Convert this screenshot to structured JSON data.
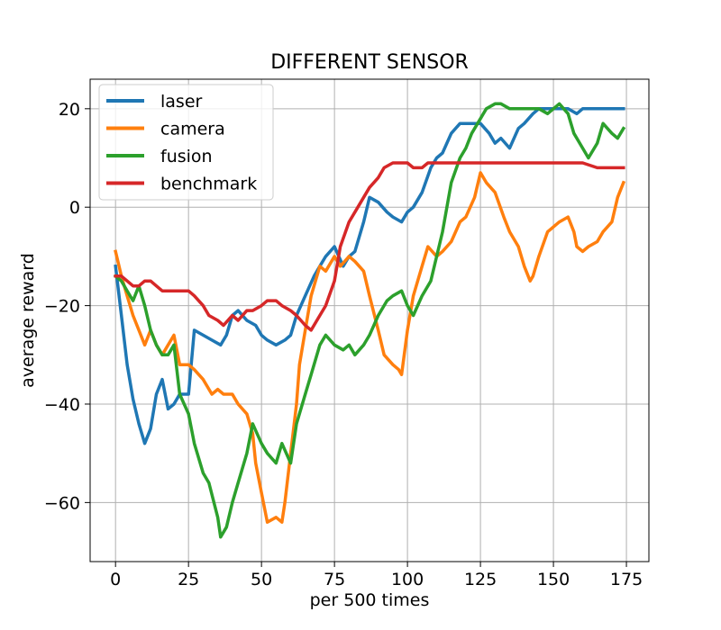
{
  "chart_data": {
    "type": "line",
    "title": "DIFFERENT SENSOR",
    "xlabel": "per 500 times",
    "ylabel": "average reward",
    "xlim": [
      -8.7,
      182.7
    ],
    "ylim": [
      -72,
      26
    ],
    "xticks": [
      0,
      25,
      50,
      75,
      100,
      125,
      150,
      175
    ],
    "yticks": [
      -60,
      -40,
      -20,
      0,
      20
    ],
    "ytick_labels": [
      "−60",
      "−40",
      "−20",
      "0",
      "20"
    ],
    "grid": true,
    "legend_position": "upper-left",
    "series": [
      {
        "name": "laser",
        "color": "#1f77b4",
        "x": [
          0,
          2,
          4,
          6,
          8,
          10,
          12,
          14,
          16,
          18,
          20,
          22,
          25,
          27,
          30,
          33,
          36,
          38,
          40,
          42,
          45,
          48,
          50,
          52,
          55,
          58,
          60,
          62,
          65,
          68,
          70,
          72,
          75,
          78,
          80,
          82,
          85,
          87,
          90,
          93,
          95,
          98,
          100,
          102,
          105,
          108,
          110,
          112,
          115,
          118,
          120,
          122,
          125,
          128,
          130,
          132,
          135,
          138,
          140,
          143,
          145,
          148,
          150,
          152,
          155,
          158,
          160,
          162,
          165,
          168,
          170,
          172,
          174
        ],
        "values": [
          -12,
          -22,
          -32,
          -39,
          -44,
          -48,
          -45,
          -38,
          -35,
          -41,
          -40,
          -38,
          -38,
          -25,
          -26,
          -27,
          -28,
          -26,
          -22,
          -21,
          -23,
          -24,
          -26,
          -27,
          -28,
          -27,
          -26,
          -22,
          -18,
          -14,
          -12,
          -10,
          -8,
          -12,
          -10,
          -9,
          -3,
          2,
          1,
          -1,
          -2,
          -3,
          -1,
          0,
          3,
          8,
          10,
          11,
          15,
          17,
          17,
          17,
          17,
          15,
          13,
          14,
          12,
          16,
          17,
          19,
          20,
          20,
          20,
          20,
          20,
          19,
          20,
          20,
          20,
          20,
          20,
          20,
          20
        ]
      },
      {
        "name": "camera",
        "color": "#ff7f0e",
        "x": [
          0,
          2,
          4,
          6,
          8,
          10,
          12,
          14,
          16,
          18,
          20,
          22,
          25,
          27,
          30,
          33,
          35,
          37,
          40,
          42,
          45,
          47,
          48,
          50,
          52,
          55,
          57,
          58,
          60,
          62,
          63,
          65,
          67,
          70,
          72,
          75,
          77,
          80,
          82,
          85,
          87,
          90,
          92,
          95,
          97,
          98,
          100,
          102,
          105,
          107,
          110,
          112,
          115,
          118,
          120,
          123,
          125,
          127,
          130,
          133,
          135,
          138,
          140,
          142,
          143,
          145,
          148,
          150,
          152,
          155,
          157,
          158,
          160,
          162,
          165,
          167,
          170,
          172,
          174
        ],
        "values": [
          -9,
          -14,
          -18,
          -22,
          -25,
          -28,
          -25,
          -28,
          -30,
          -28,
          -26,
          -32,
          -32,
          -33,
          -35,
          -38,
          -37,
          -38,
          -38,
          -40,
          -42,
          -46,
          -52,
          -58,
          -64,
          -63,
          -64,
          -60,
          -50,
          -40,
          -32,
          -25,
          -18,
          -12,
          -13,
          -10,
          -12,
          -10,
          -11,
          -13,
          -18,
          -25,
          -30,
          -32,
          -33,
          -34,
          -25,
          -18,
          -12,
          -8,
          -10,
          -9,
          -7,
          -3,
          -2,
          2,
          7,
          5,
          3,
          -2,
          -5,
          -8,
          -12,
          -15,
          -14,
          -10,
          -5,
          -4,
          -3,
          -2,
          -5,
          -8,
          -9,
          -8,
          -7,
          -5,
          -3,
          2,
          5
        ]
      },
      {
        "name": "fusion",
        "color": "#2ca02c",
        "x": [
          0,
          2,
          4,
          6,
          8,
          10,
          12,
          14,
          16,
          18,
          20,
          22,
          25,
          27,
          30,
          32,
          35,
          36,
          38,
          40,
          42,
          45,
          47,
          50,
          52,
          55,
          57,
          60,
          62,
          65,
          67,
          70,
          72,
          75,
          78,
          80,
          82,
          85,
          87,
          90,
          93,
          95,
          98,
          100,
          102,
          105,
          108,
          110,
          112,
          115,
          118,
          120,
          122,
          125,
          127,
          130,
          132,
          135,
          138,
          140,
          142,
          145,
          148,
          150,
          152,
          155,
          157,
          160,
          162,
          165,
          167,
          170,
          172,
          174
        ],
        "values": [
          -14,
          -15,
          -17,
          -19,
          -16,
          -20,
          -25,
          -28,
          -30,
          -30,
          -28,
          -38,
          -42,
          -48,
          -54,
          -56,
          -63,
          -67,
          -65,
          -60,
          -56,
          -50,
          -44,
          -48,
          -50,
          -52,
          -48,
          -52,
          -44,
          -38,
          -34,
          -28,
          -26,
          -28,
          -29,
          -28,
          -30,
          -28,
          -26,
          -22,
          -19,
          -18,
          -17,
          -20,
          -22,
          -18,
          -15,
          -10,
          -5,
          5,
          10,
          12,
          15,
          18,
          20,
          21,
          21,
          20,
          20,
          20,
          20,
          20,
          19,
          20,
          21,
          19,
          15,
          12,
          10,
          13,
          17,
          15,
          14,
          16
        ]
      },
      {
        "name": "benchmark",
        "color": "#d62728",
        "x": [
          0,
          2,
          4,
          6,
          8,
          10,
          12,
          14,
          16,
          18,
          20,
          22,
          25,
          27,
          30,
          32,
          35,
          37,
          40,
          42,
          45,
          47,
          50,
          52,
          55,
          57,
          60,
          62,
          65,
          67,
          70,
          72,
          75,
          77,
          80,
          82,
          85,
          87,
          90,
          92,
          95,
          97,
          100,
          102,
          105,
          107,
          110,
          115,
          120,
          125,
          130,
          135,
          140,
          145,
          150,
          155,
          160,
          165,
          170,
          174
        ],
        "values": [
          -14,
          -14,
          -15,
          -16,
          -16,
          -15,
          -15,
          -16,
          -17,
          -17,
          -17,
          -17,
          -17,
          -18,
          -20,
          -22,
          -23,
          -24,
          -22,
          -23,
          -21,
          -21,
          -20,
          -19,
          -19,
          -20,
          -21,
          -22,
          -24,
          -25,
          -22,
          -20,
          -15,
          -8,
          -3,
          -1,
          2,
          4,
          6,
          8,
          9,
          9,
          9,
          8,
          8,
          9,
          9,
          9,
          9,
          9,
          9,
          9,
          9,
          9,
          9,
          9,
          9,
          8,
          8,
          8
        ]
      }
    ]
  }
}
